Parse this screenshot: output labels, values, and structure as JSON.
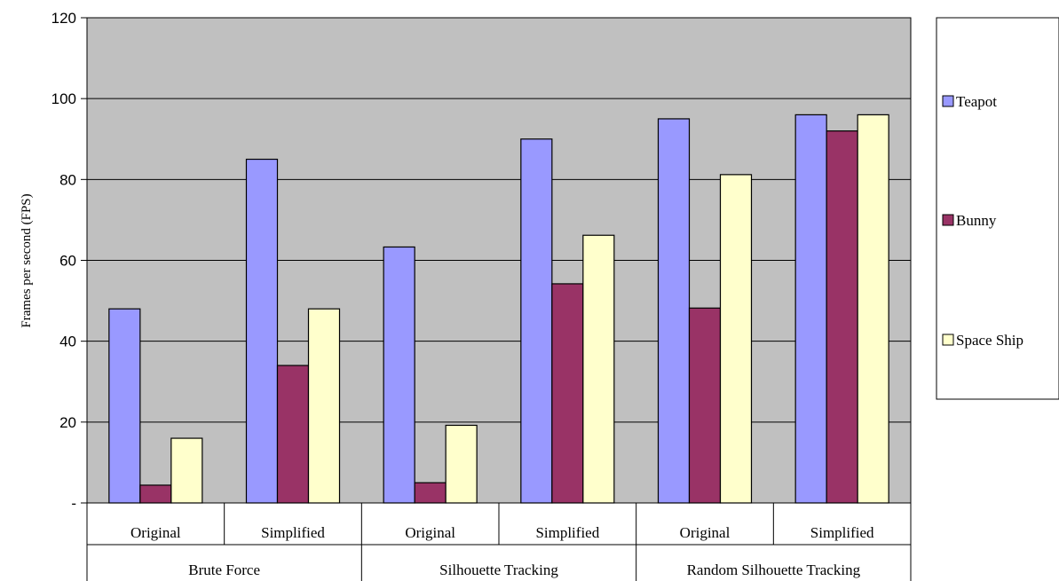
{
  "chart_data": {
    "type": "bar",
    "title": "",
    "ylabel": "Frames per second (FPS)",
    "xlabel": "",
    "ylim": [
      0,
      120
    ],
    "yticks": [
      0,
      20,
      40,
      60,
      80,
      100,
      120
    ],
    "ytick_labels": [
      "-",
      "20",
      "40",
      "60",
      "80",
      "100",
      "120"
    ],
    "grid": true,
    "legend_position": "right",
    "groups": [
      {
        "label": "Brute Force",
        "categories": [
          "Original",
          "Simplified"
        ]
      },
      {
        "label": "Silhouette Tracking",
        "categories": [
          "Original",
          "Simplified"
        ]
      },
      {
        "label": "Random Silhouette Tracking",
        "categories": [
          "Original",
          "Simplified"
        ]
      }
    ],
    "series": [
      {
        "name": "Teapot",
        "color": "#9999ff",
        "values": [
          48,
          85,
          63.3,
          90,
          95,
          96
        ]
      },
      {
        "name": "Bunny",
        "color": "#993366",
        "values": [
          4.4,
          34,
          5,
          54.2,
          48.2,
          92
        ]
      },
      {
        "name": "Space Ship",
        "color": "#ffffcc",
        "values": [
          16,
          48,
          19.2,
          66.2,
          81.2,
          96
        ]
      }
    ],
    "plot_background": "#c0c0c0"
  }
}
